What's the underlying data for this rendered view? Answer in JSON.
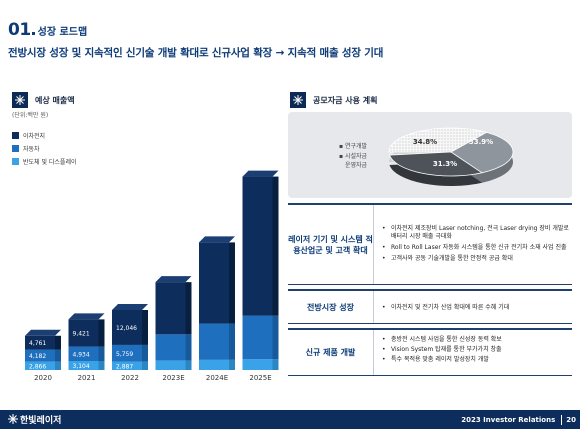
{
  "section": {
    "number": "01",
    "title": "성장 로드맵"
  },
  "headline": "전방시장 성장 및 지속적인 신기술 개발 확대로 신규사업 확장 → 지속적 매출 성장 기대",
  "left_panel": {
    "title": "예상 매출액",
    "unit": "(단위:백만 원)",
    "legend": [
      {
        "label": "이차전지",
        "color": "#0d2d5c"
      },
      {
        "label": "자동차",
        "color": "#1f6fbf"
      },
      {
        "label": "반도체 및 디스플레이",
        "color": "#3aa3e8"
      }
    ]
  },
  "chart_data": {
    "type": "bar",
    "stacked": true,
    "categories": [
      "2020",
      "2021",
      "2022",
      "2023E",
      "2024E",
      "2025E"
    ],
    "series": [
      {
        "name": "반도체 및 디스플레이",
        "values": [
          2866,
          3104,
          2887,
          3300,
          3500,
          3700
        ]
      },
      {
        "name": "자동차",
        "values": [
          4182,
          4934,
          5759,
          9000,
          12500,
          15000
        ]
      },
      {
        "name": "이차전지",
        "values": [
          4761,
          9421,
          12046,
          18000,
          28000,
          48000
        ]
      }
    ],
    "data_labels": [
      [
        "2,866",
        "3,104",
        "2,887",
        "",
        "",
        ""
      ],
      [
        "4,182",
        "4,934",
        "5,759",
        "",
        "",
        ""
      ],
      [
        "4,761",
        "9,421",
        "12,046",
        "",
        "",
        ""
      ]
    ]
  },
  "right_panel": {
    "title": "공모자금 사용 계획",
    "pie": {
      "legend": [
        "연구개발",
        "시설자금",
        "운영자금"
      ],
      "slices": [
        {
          "label": "연구개발",
          "value": 34.8,
          "text": "34.8%",
          "color": "#f4f4f4"
        },
        {
          "label": "시설자금",
          "value": 33.9,
          "text": "33.9%",
          "color": "#8f959c"
        },
        {
          "label": "운영자금",
          "value": 31.3,
          "text": "31.3%",
          "color": "#4e5359"
        }
      ]
    },
    "rows": [
      {
        "label": "레이저 기기 및 시스템 적용산업군 및 고객 확대",
        "bullets": [
          "이차전지 제조장비 Laser notching, 전극 Laser drying 장비 개발로 배터리 시장 매출 극대화",
          "Roll to Roll Laser 자동화 시스템을 통한 신규 전기차 소재 사업 진출",
          "고객사와 공동 기술개발을 통한 안정적 공급 확대"
        ]
      },
      {
        "label": "전방시장 성장",
        "bullets": [
          "이차전지 및 전기차 산업 확대에 따른 수혜 기대"
        ]
      },
      {
        "label": "신규 제품 개발",
        "bullets": [
          "충방전 시스템 사업을 통한 신성장 동력 확보",
          "Vision System 탑재를 통한 부가가치 창출",
          "특수 목적용 맞춤 레이저 발성장치 개발"
        ]
      }
    ]
  },
  "footer": {
    "company": "한빛레이저",
    "report": "2023 Investor Relations",
    "page": "20"
  }
}
